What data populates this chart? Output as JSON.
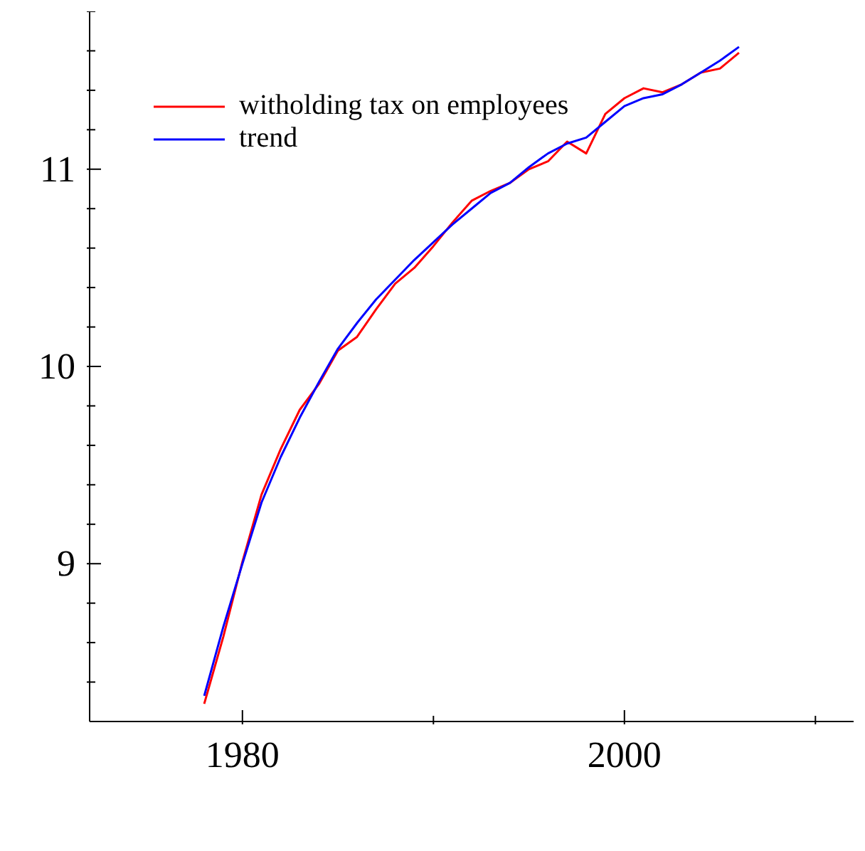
{
  "chart_data": {
    "type": "line",
    "x": [
      1978,
      1979,
      1980,
      1981,
      1982,
      1983,
      1984,
      1985,
      1986,
      1987,
      1988,
      1989,
      1990,
      1991,
      1992,
      1993,
      1994,
      1995,
      1996,
      1997,
      1998,
      1999,
      2000,
      2001,
      2002,
      2003,
      2004,
      2005,
      2006
    ],
    "series": [
      {
        "name": "witholding tax on employees",
        "color": "#ff0000",
        "values": [
          8.29,
          8.63,
          9.01,
          9.35,
          9.58,
          9.78,
          9.91,
          10.08,
          10.15,
          10.29,
          10.42,
          10.5,
          10.61,
          10.73,
          10.84,
          10.89,
          10.93,
          11.0,
          11.04,
          11.14,
          11.08,
          11.28,
          11.36,
          11.41,
          11.39,
          11.43,
          11.49,
          11.51,
          11.59
        ]
      },
      {
        "name": "trend",
        "color": "#0000ff",
        "values": [
          8.33,
          8.68,
          9.0,
          9.31,
          9.54,
          9.74,
          9.92,
          10.09,
          10.22,
          10.34,
          10.44,
          10.54,
          10.63,
          10.72,
          10.8,
          10.88,
          10.93,
          11.01,
          11.08,
          11.13,
          11.16,
          11.24,
          11.32,
          11.36,
          11.38,
          11.43,
          11.49,
          11.55,
          11.62
        ]
      }
    ],
    "xlim": [
      1972,
      2012
    ],
    "xticks": [
      1980,
      {
        "value": 1990,
        "label": null
      },
      2000,
      {
        "value": 2010,
        "label": null
      }
    ],
    "ylim": [
      8.2,
      11.8
    ],
    "yticks": [
      {
        "value": 8.4,
        "label": null
      },
      {
        "value": 8.6,
        "label": null
      },
      {
        "value": 8.8,
        "label": null
      },
      9,
      {
        "value": 9.2,
        "label": null
      },
      {
        "value": 9.4,
        "label": null
      },
      {
        "value": 9.6,
        "label": null
      },
      {
        "value": 9.8,
        "label": null
      },
      10,
      {
        "value": 10.2,
        "label": null
      },
      {
        "value": 10.4,
        "label": null
      },
      {
        "value": 10.6,
        "label": null
      },
      {
        "value": 10.8,
        "label": null
      },
      11,
      {
        "value": 11.2,
        "label": null
      },
      {
        "value": 11.4,
        "label": null
      },
      {
        "value": 11.6,
        "label": null
      },
      {
        "value": 11.8,
        "label": null
      }
    ],
    "grid": false,
    "legend": "top left",
    "marker": "none",
    "line_style": "solid"
  }
}
